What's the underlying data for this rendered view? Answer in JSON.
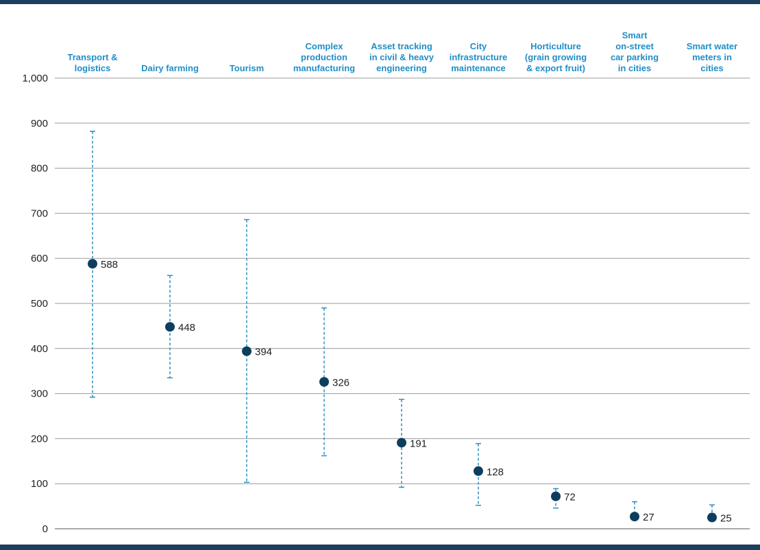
{
  "chart_data": {
    "type": "scatter",
    "title": "",
    "xlabel": "",
    "ylabel": "",
    "ylim": [
      0,
      1000
    ],
    "yticks": [
      0,
      100,
      200,
      300,
      400,
      500,
      600,
      700,
      800,
      900,
      1000
    ],
    "ytick_labels": [
      "0",
      "100",
      "200",
      "300",
      "400",
      "500",
      "600",
      "700",
      "800",
      "900",
      "1,000"
    ],
    "grid": true,
    "categories": [
      [
        "Transport &",
        "logistics"
      ],
      [
        "Dairy farming"
      ],
      [
        "Tourism"
      ],
      [
        "Complex",
        "production",
        "manufacturing"
      ],
      [
        "Asset tracking",
        "in civil & heavy",
        "engineering"
      ],
      [
        "City",
        "infrastructure",
        "maintenance"
      ],
      [
        "Horticulture",
        "(grain growing",
        "& export fruit)"
      ],
      [
        "Smart",
        "on-street",
        "car parking",
        "in cities"
      ],
      [
        "Smart water",
        "meters in",
        "cities"
      ]
    ],
    "values": [
      588,
      448,
      394,
      326,
      191,
      128,
      72,
      27,
      25
    ],
    "value_labels": [
      "588",
      "448",
      "394",
      "326",
      "191",
      "128",
      "72",
      "27",
      "25"
    ],
    "error_low": [
      292,
      335,
      103,
      162,
      92,
      52,
      46,
      27,
      25
    ],
    "error_high": [
      882,
      562,
      686,
      490,
      287,
      189,
      89,
      60,
      53
    ],
    "colors": {
      "marker": "#0e3e5e",
      "error_bar": "#2a8fc0",
      "category_text": "#1f8ec8",
      "frame": "#1d3f5f"
    }
  }
}
